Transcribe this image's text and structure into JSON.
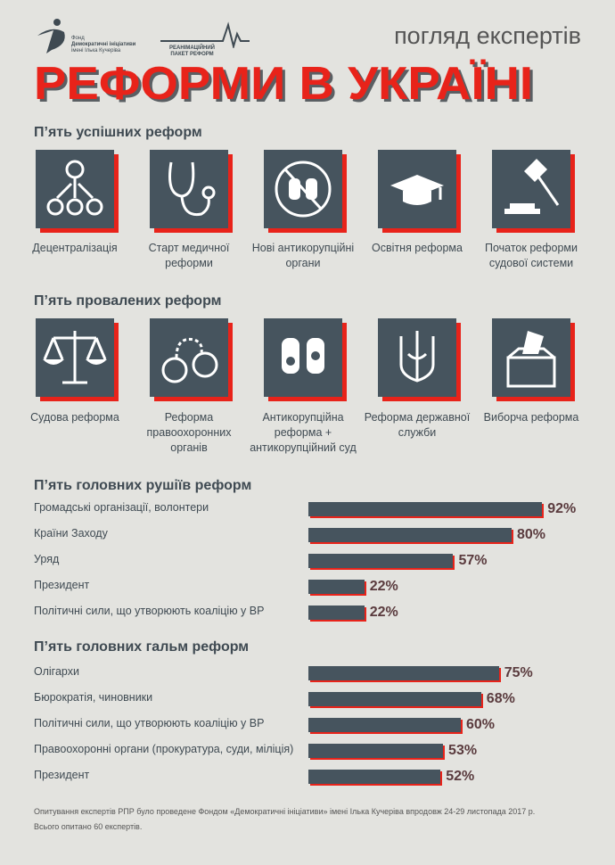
{
  "header": {
    "logo1_lines": [
      "Фонд",
      "Демократичні ініціативи",
      "імені Ілька Кучеріва"
    ],
    "logo2_lines": [
      "РЕАНІМАЦІЙНИЙ",
      "ПАКЕТ РЕФОРМ"
    ],
    "subtitle": "погляд експертів",
    "title": "РЕФОРМИ В УКРАЇНІ"
  },
  "successful": {
    "heading": "П’ять успішних реформ",
    "items": [
      {
        "icon": "decentralization-icon",
        "label": "Децентралізація"
      },
      {
        "icon": "stethoscope-icon",
        "label": "Старт медичної реформи"
      },
      {
        "icon": "no-bribe-hands-icon",
        "label": "Нові антикорупційні органи"
      },
      {
        "icon": "graduation-cap-icon",
        "label": "Освітня реформа"
      },
      {
        "icon": "gavel-icon",
        "label": "Початок реформи судової системи"
      }
    ]
  },
  "failed": {
    "heading": "П’ять провалених реформ",
    "items": [
      {
        "icon": "scales-icon",
        "label": "Судова реформа"
      },
      {
        "icon": "handcuffs-icon",
        "label": "Реформа правоохоронних органів"
      },
      {
        "icon": "dirty-hands-icon",
        "label": "Антикорупційна реформа + антикорупційний суд"
      },
      {
        "icon": "trident-icon",
        "label": "Реформа державної служби"
      },
      {
        "icon": "ballot-box-icon",
        "label": "Виборча реформа"
      }
    ]
  },
  "chart_data": [
    {
      "type": "bar",
      "orientation": "horizontal",
      "title": "П’ять головних рушіїв реформ",
      "categories": [
        "Громадські організації, волонтери",
        "Країни Заходу",
        "Уряд",
        "Президент",
        "Політичні сили, що утворюють коаліцію у ВР"
      ],
      "values": [
        92,
        80,
        57,
        22,
        22
      ],
      "labels": [
        "92%",
        "80%",
        "57%",
        "22%",
        "22%"
      ],
      "xlim": [
        0,
        100
      ]
    },
    {
      "type": "bar",
      "orientation": "horizontal",
      "title": "П’ять головних гальм реформ",
      "categories": [
        "Олігархи",
        "Бюрократія, чиновники",
        "Політичні сили, що утворюють коаліцію у ВР",
        "Правоохоронні органи (прокуратура, суди, міліція)",
        "Президент"
      ],
      "values": [
        75,
        68,
        60,
        53,
        52
      ],
      "labels": [
        "75%",
        "68%",
        "60%",
        "53%",
        "52%"
      ],
      "xlim": [
        0,
        100
      ]
    }
  ],
  "colors": {
    "accent": "#e8231a",
    "tile": "#46545e",
    "background": "#e3e3df"
  },
  "footnote": [
    "Опитування  експертів РПР було проведене Фондом «Демократичні ініціативи» імені Ілька Кучеріва впродовж 24-29 листопада 2017 р.",
    "Всього опитано 60 експертів."
  ]
}
